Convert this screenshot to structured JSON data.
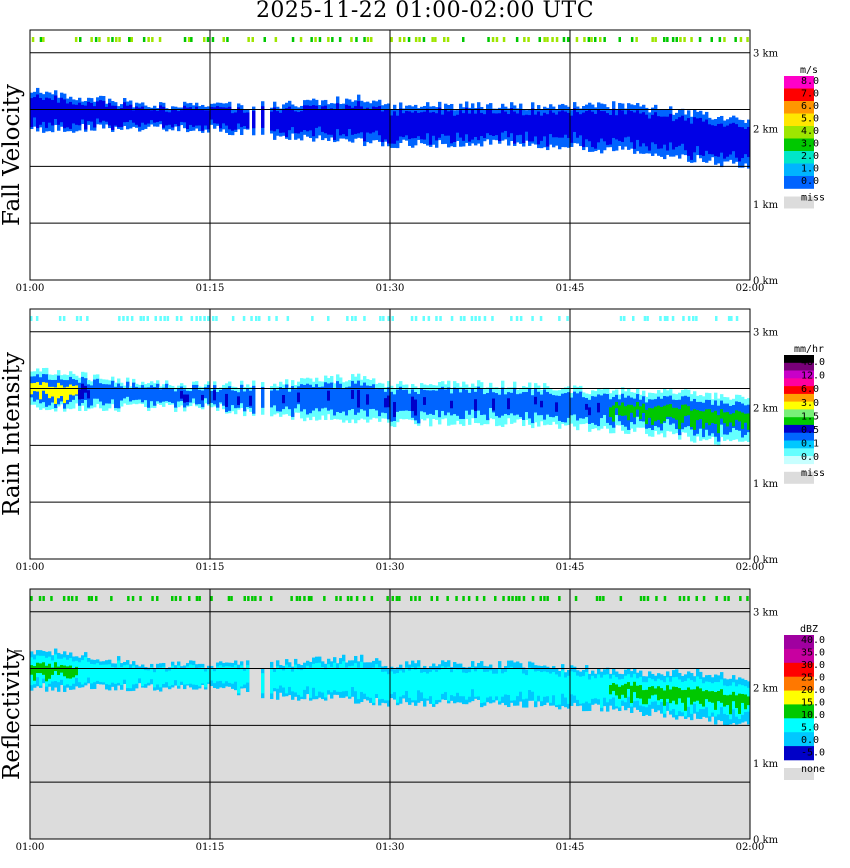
{
  "title": "2025-11-22   01:00-02:00 UTC",
  "x_ticks": [
    "01:00",
    "01:15",
    "01:30",
    "01:45",
    "02:00"
  ],
  "height_ticks": [
    "3 km",
    "2 km",
    "1 km",
    "0 km"
  ],
  "colors": {
    "missing": "#dcdcdc",
    "fv": [
      "#0000e6",
      "#0064ff",
      "#00b4ff",
      "#00e6c8",
      "#00c800",
      "#9ee600",
      "#ffe600",
      "#ff9600",
      "#ff0000",
      "#ff00c8"
    ],
    "ri": [
      "#c8ffff",
      "#64ffff",
      "#00c8ff",
      "#0064ff",
      "#0000c8",
      "#00c800",
      "#78f078",
      "#ffff00",
      "#ffa000",
      "#ff0000",
      "#ff00a0",
      "#c800c8",
      "#780078",
      "#000000"
    ],
    "dbz": [
      "#0000c8",
      "#00c8ff",
      "#00ffff",
      "#00c800",
      "#ffff00",
      "#ff7800",
      "#ff0000",
      "#c800a0",
      "#a000a0"
    ]
  },
  "panels": [
    {
      "ylabel": "Fall Velocity",
      "legend_unit": "m/s",
      "legend_labels": [
        "8.0",
        "7.0",
        "6.0",
        "5.0",
        "4.0",
        "3.0",
        "2.0",
        "1.0",
        "0.0"
      ],
      "legend_missing": "miss"
    },
    {
      "ylabel": "Rain Intensity",
      "legend_unit": "mm/hr",
      "legend_labels": [
        "48.0",
        "12.0",
        "6.0",
        "3.0",
        "1.5",
        "0.5",
        "0.1",
        "0.0"
      ],
      "legend_missing": "miss"
    },
    {
      "ylabel": "Reflectivity",
      "legend_unit": "dBZ",
      "legend_labels": [
        "40.0",
        "35.0",
        "30.0",
        "25.0",
        "20.0",
        "15.0",
        "10.0",
        "5.0",
        "0.0",
        "-5.0"
      ],
      "legend_missing": "none"
    }
  ],
  "chart_data": [
    {
      "type": "heatmap",
      "title": "Fall Velocity",
      "xlabel": "",
      "ylabel": "Fall Velocity",
      "units": "m/s",
      "x_range": [
        "01:00",
        "02:00"
      ],
      "ylim_km": [
        0,
        3.3
      ],
      "layer_top_km": [
        [
          0,
          2.5
        ],
        [
          5,
          2.4
        ],
        [
          10,
          2.3
        ],
        [
          20,
          2.3
        ],
        [
          27,
          2.4
        ],
        [
          30,
          2.3
        ],
        [
          40,
          2.3
        ],
        [
          50,
          2.3
        ],
        [
          55,
          2.2
        ],
        [
          60,
          2.1
        ]
      ],
      "layer_base_km": [
        [
          0,
          2.0
        ],
        [
          5,
          2.0
        ],
        [
          10,
          2.0
        ],
        [
          15,
          2.0
        ],
        [
          20,
          1.9
        ],
        [
          30,
          1.8
        ],
        [
          40,
          1.8
        ],
        [
          50,
          1.7
        ],
        [
          55,
          1.6
        ],
        [
          60,
          1.5
        ]
      ],
      "dominant_value_ms": [
        1,
        2
      ]
    },
    {
      "type": "heatmap",
      "title": "Rain Intensity",
      "xlabel": "",
      "ylabel": "Rain Intensity",
      "units": "mm/hr",
      "x_range": [
        "01:00",
        "02:00"
      ],
      "ylim_km": [
        0,
        3.3
      ],
      "layer_top_km": [
        [
          0,
          2.5
        ],
        [
          5,
          2.4
        ],
        [
          10,
          2.3
        ],
        [
          20,
          2.3
        ],
        [
          27,
          2.4
        ],
        [
          30,
          2.3
        ],
        [
          40,
          2.3
        ],
        [
          50,
          2.2
        ],
        [
          55,
          2.2
        ],
        [
          60,
          2.1
        ]
      ],
      "layer_base_km": [
        [
          0,
          2.0
        ],
        [
          5,
          2.0
        ],
        [
          10,
          2.0
        ],
        [
          15,
          2.0
        ],
        [
          20,
          1.9
        ],
        [
          30,
          1.8
        ],
        [
          40,
          1.8
        ],
        [
          50,
          1.7
        ],
        [
          55,
          1.6
        ],
        [
          60,
          1.5
        ]
      ],
      "dominant_value_mmhr": [
        0.1,
        0.5
      ]
    },
    {
      "type": "heatmap",
      "title": "Reflectivity",
      "xlabel": "",
      "ylabel": "Reflectivity",
      "units": "dBZ",
      "x_range": [
        "01:00",
        "02:00"
      ],
      "ylim_km": [
        0,
        3.3
      ],
      "layer_top_km": [
        [
          0,
          2.5
        ],
        [
          5,
          2.4
        ],
        [
          10,
          2.3
        ],
        [
          20,
          2.3
        ],
        [
          27,
          2.4
        ],
        [
          30,
          2.3
        ],
        [
          40,
          2.3
        ],
        [
          50,
          2.2
        ],
        [
          55,
          2.2
        ],
        [
          60,
          2.1
        ]
      ],
      "layer_base_km": [
        [
          0,
          2.0
        ],
        [
          5,
          2.0
        ],
        [
          10,
          2.0
        ],
        [
          15,
          2.0
        ],
        [
          20,
          1.9
        ],
        [
          30,
          1.8
        ],
        [
          40,
          1.8
        ],
        [
          50,
          1.7
        ],
        [
          55,
          1.6
        ],
        [
          60,
          1.5
        ]
      ],
      "dominant_value_dbz": [
        5,
        15
      ]
    }
  ]
}
